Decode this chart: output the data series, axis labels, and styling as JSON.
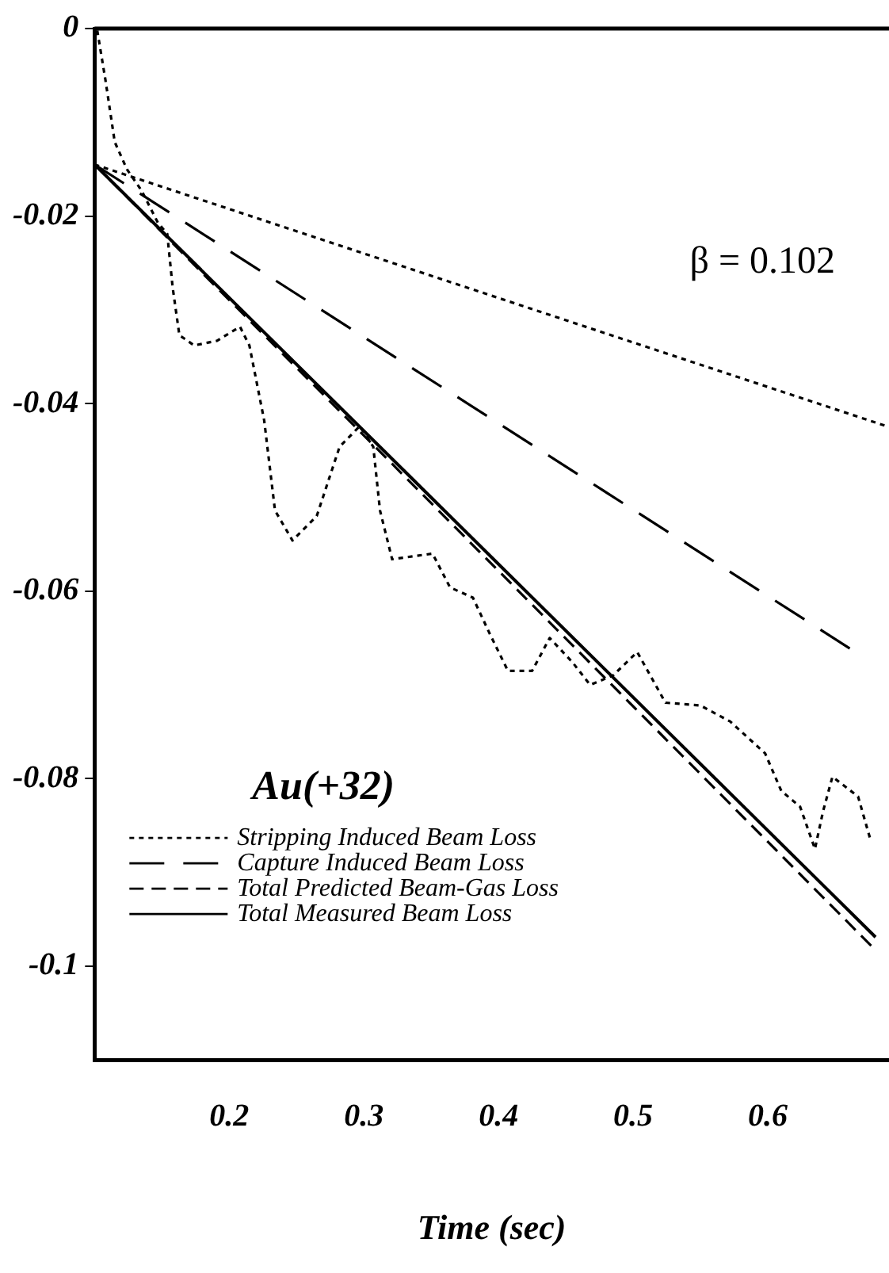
{
  "chart_data": {
    "type": "line",
    "xlabel": "Time (sec)",
    "xlim": [
      0.1,
      0.69
    ],
    "xticks": [
      0.2,
      0.3,
      0.4,
      0.5,
      0.6
    ],
    "ylim": [
      -0.11,
      0
    ],
    "yticks": [
      0,
      -0.02,
      -0.04,
      -0.06,
      -0.08,
      -0.1
    ],
    "grid": false,
    "legend": "bottom left",
    "marker": "none",
    "annotations": [
      "β = 0.102",
      "Au(+32)"
    ],
    "series": [
      {
        "name": "Stripping Induced Beam Loss",
        "color": "#000000",
        "line_style": "dotted",
        "x": [
          0.1,
          0.688
        ],
        "values": [
          -0.0145,
          -0.0424
        ]
      },
      {
        "name": "Capture Induced Beam Loss",
        "color": "#000000",
        "line_style": "dashed",
        "x": [
          0.1,
          0.665
        ],
        "values": [
          -0.0145,
          -0.0665
        ]
      },
      {
        "name": "Total Predicted Beam-Gas Loss",
        "color": "#000000",
        "line_style": "dashed",
        "x": [
          0.1,
          0.678
        ],
        "values": [
          -0.0145,
          -0.098
        ]
      },
      {
        "name": "Total Measured Beam Loss",
        "color": "#000000",
        "line_style": "solid",
        "x": [
          0.1,
          0.68
        ],
        "values": [
          -0.0145,
          -0.0969
        ]
      },
      {
        "color": "#000000",
        "line_style": "dotted",
        "x": [
          0.102,
          0.108,
          0.115,
          0.124,
          0.135,
          0.147,
          0.154,
          0.158,
          0.163,
          0.174,
          0.191,
          0.208,
          0.215,
          0.226,
          0.234,
          0.247,
          0.265,
          0.282,
          0.297,
          0.307,
          0.312,
          0.321,
          0.351,
          0.364,
          0.381,
          0.394,
          0.407,
          0.425,
          0.438,
          0.455,
          0.468,
          0.485,
          0.503,
          0.524,
          0.55,
          0.572,
          0.598,
          0.61,
          0.624,
          0.635,
          0.641,
          0.648,
          0.667,
          0.676
        ],
        "values": [
          -0.0002,
          -0.0054,
          -0.0121,
          -0.015,
          -0.0173,
          -0.0207,
          -0.0219,
          -0.0276,
          -0.0327,
          -0.0338,
          -0.0333,
          -0.0318,
          -0.0338,
          -0.0418,
          -0.0514,
          -0.0546,
          -0.052,
          -0.0446,
          -0.0424,
          -0.0446,
          -0.0514,
          -0.0566,
          -0.056,
          -0.0596,
          -0.0607,
          -0.0647,
          -0.0685,
          -0.0685,
          -0.065,
          -0.0676,
          -0.07,
          -0.069,
          -0.0665,
          -0.0719,
          -0.0722,
          -0.0739,
          -0.0773,
          -0.0813,
          -0.083,
          -0.0875,
          -0.0835,
          -0.0798,
          -0.0819,
          -0.0864
        ]
      }
    ]
  }
}
